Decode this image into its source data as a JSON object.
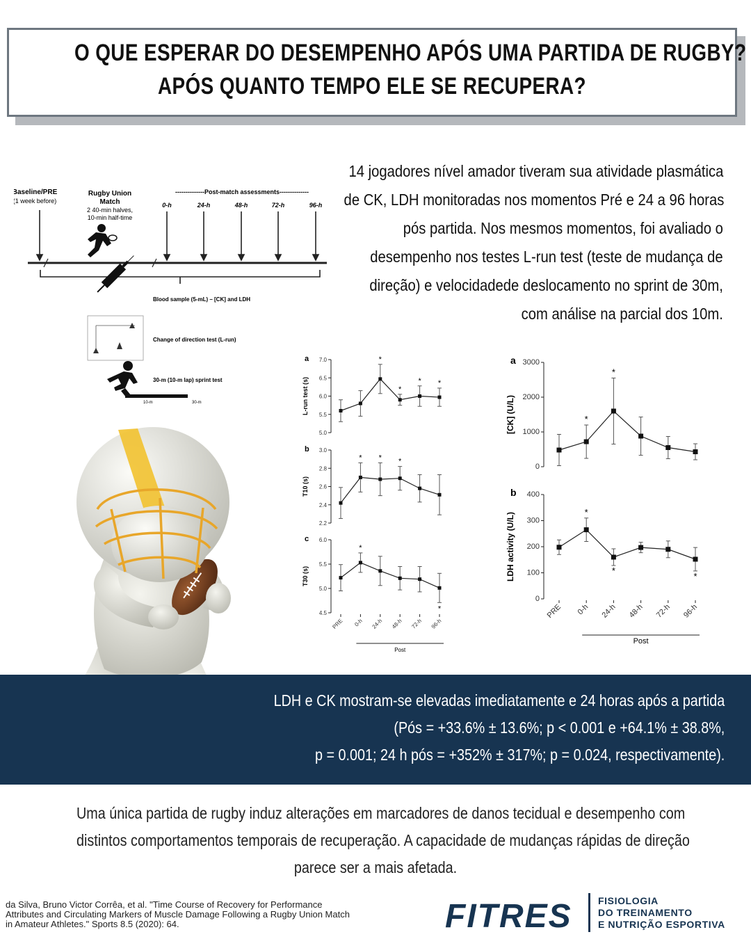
{
  "title": {
    "line1": "O QUE ESPERAR DO DESEMPENHO APÓS UMA PARTIDA DE RUGBY?",
    "line2": "APÓS QUANTO TEMPO ELE SE RECUPERA?"
  },
  "intro": {
    "lines": [
      "14 jogadores nível amador tiveram sua atividade plasmática",
      "de CK, LDH monitoradas nos momentos Pré e 24 a 96 horas",
      "pós partida. Nos mesmos momentos, foi avaliado o",
      "desempenho nos testes L-run test (teste de mudança de",
      "direção) e velocidadede deslocamento no sprint de 30m,",
      "com análise na parcial dos 10m."
    ]
  },
  "design": {
    "baseline_label": "Baseline/PRE",
    "baseline_sub": "(1 week before)",
    "match_label_1": "Rugby Union",
    "match_label_2": "Match",
    "match_sub_1": "2 40-min halves,",
    "match_sub_2": "10-min half-time",
    "post_label": "--------------Post-match assessments--------------",
    "timepoints": [
      "0-h",
      "24-h",
      "48-h",
      "72-h",
      "96-h"
    ],
    "blood_label": "Blood sample (5-mL) – [CK] and LDH",
    "cod_label": "Change of direction test (L-run)",
    "sprint_label": "30-m (10-m lap) sprint test",
    "scale_10": "10-m",
    "scale_30": "30-m"
  },
  "chart_data": [
    {
      "type": "line",
      "panel": "a",
      "ylabel": "L-run test (s)",
      "x": [
        "PRE",
        "0-h",
        "24-h",
        "48-h",
        "72-h",
        "96-h"
      ],
      "values": [
        5.6,
        5.8,
        6.47,
        5.9,
        6.0,
        5.97
      ],
      "errors": [
        0.3,
        0.35,
        0.4,
        0.15,
        0.28,
        0.25
      ],
      "significant": [
        false,
        false,
        true,
        true,
        true,
        true
      ],
      "ylim": [
        5.0,
        7.0
      ],
      "yticks": [
        "5.0",
        "5.5",
        "6.0",
        "6.5",
        "7.0"
      ]
    },
    {
      "type": "line",
      "panel": "b",
      "ylabel": "T10 (s)",
      "x": [
        "PRE",
        "0-h",
        "24-h",
        "48-h",
        "72-h",
        "96-h"
      ],
      "values": [
        2.42,
        2.7,
        2.68,
        2.69,
        2.58,
        2.51
      ],
      "errors": [
        0.17,
        0.16,
        0.18,
        0.13,
        0.15,
        0.22
      ],
      "significant": [
        false,
        true,
        true,
        true,
        false,
        false
      ],
      "ylim": [
        2.2,
        3.0
      ],
      "yticks": [
        "2.2",
        "2.4",
        "2.6",
        "2.8",
        "3.0"
      ]
    },
    {
      "type": "line",
      "panel": "c",
      "ylabel": "T30 (s)",
      "x": [
        "PRE",
        "0-h",
        "24-h",
        "48-h",
        "72-h",
        "96-h"
      ],
      "values": [
        5.22,
        5.53,
        5.36,
        5.21,
        5.19,
        5.01
      ],
      "errors": [
        0.27,
        0.2,
        0.3,
        0.24,
        0.26,
        0.3
      ],
      "significant": [
        false,
        true,
        false,
        false,
        false,
        true
      ],
      "ylim": [
        4.5,
        6.0
      ],
      "yticks": [
        "4.5",
        "5.0",
        "5.5",
        "6.0"
      ],
      "xgroup_label": "Post"
    },
    {
      "type": "line",
      "panel": "a",
      "ylabel": "[CK] (U/L)",
      "x": [
        "PRE",
        "0-h",
        "24-h",
        "48-h",
        "72-h",
        "96-h"
      ],
      "values": [
        480,
        720,
        1600,
        880,
        550,
        430
      ],
      "errors": [
        450,
        480,
        950,
        550,
        320,
        230
      ],
      "significant": [
        false,
        true,
        true,
        false,
        false,
        false
      ],
      "ylim": [
        0,
        3000
      ],
      "yticks": [
        "0",
        "1000",
        "2000",
        "3000"
      ]
    },
    {
      "type": "line",
      "panel": "b",
      "ylabel": "LDH activity (U/L)",
      "x": [
        "PRE",
        "0-h",
        "24-h",
        "48-h",
        "72-h",
        "96-h"
      ],
      "values": [
        198,
        265,
        160,
        197,
        190,
        152
      ],
      "errors": [
        28,
        45,
        32,
        20,
        32,
        45
      ],
      "significant": [
        false,
        true,
        true,
        false,
        false,
        true
      ],
      "ylim": [
        0,
        400
      ],
      "yticks": [
        "0",
        "100",
        "200",
        "300",
        "400"
      ],
      "xgroup_label": "Post"
    }
  ],
  "findings": {
    "lines": [
      "LDH e CK mostram-se elevadas imediatamente e 24 horas após a partida",
      "(Pós = +33.6% ± 13.6%; p < 0.001 e +64.1% ± 38.8%,",
      "p = 0.001; 24 h pós = +352% ± 317%; p = 0.024, respectivamente)."
    ]
  },
  "conclusion": {
    "lines": [
      "Uma única partida de rugby induz alterações em marcadores de danos tecidual e desempenho com",
      "distintos comportamentos temporais de recuperação.  A capacidade de mudanças rápidas de direção",
      "parece ser a mais afetada."
    ]
  },
  "reference": {
    "lines": [
      "da Silva, Bruno Victor Corrêa, et al. \"Time Course of Recovery for Performance",
      "Attributes and Circulating Markers of Muscle Damage Following a Rugby Union Match",
      "in Amateur Athletes.\" Sports 8.5 (2020): 64."
    ]
  },
  "logo": {
    "wordmark": "FITRES",
    "sub1": "FISIOLOGIA",
    "sub2": "DO TREINAMENTO",
    "sub3": "E NUTRIÇÃO ESPORTIVA"
  },
  "colors": {
    "navy": "#173451",
    "helmet_stripe": "#f2c230",
    "figure": "#e9e8e0",
    "ball": "#6b3a1e"
  }
}
